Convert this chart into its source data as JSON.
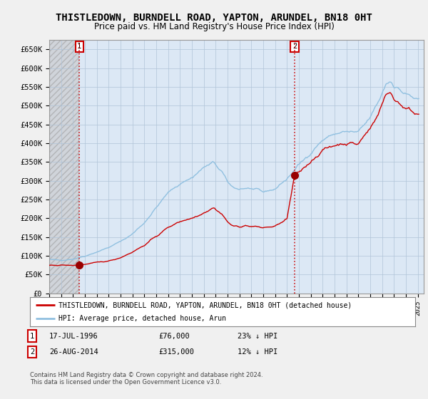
{
  "title": "THISTLEDOWN, BURNDELL ROAD, YAPTON, ARUNDEL, BN18 0HT",
  "subtitle": "Price paid vs. HM Land Registry's House Price Index (HPI)",
  "title_fontsize": 10,
  "subtitle_fontsize": 8.5,
  "ylabel_ticks": [
    "£0",
    "£50K",
    "£100K",
    "£150K",
    "£200K",
    "£250K",
    "£300K",
    "£350K",
    "£400K",
    "£450K",
    "£500K",
    "£550K",
    "£600K",
    "£650K"
  ],
  "ytick_values": [
    0,
    50000,
    100000,
    150000,
    200000,
    250000,
    300000,
    350000,
    400000,
    450000,
    500000,
    550000,
    600000,
    650000
  ],
  "ylim": [
    0,
    675000
  ],
  "xlim_start": 1994.0,
  "xlim_end": 2025.5,
  "xtick_years": [
    1994,
    1995,
    1996,
    1997,
    1998,
    1999,
    2000,
    2001,
    2002,
    2003,
    2004,
    2005,
    2006,
    2007,
    2008,
    2009,
    2010,
    2011,
    2012,
    2013,
    2014,
    2015,
    2016,
    2017,
    2018,
    2019,
    2020,
    2021,
    2022,
    2023,
    2024,
    2025
  ],
  "sale1_x": 1996.54,
  "sale1_y": 76000,
  "sale2_x": 2014.65,
  "sale2_y": 315000,
  "sale1_date": "17-JUL-1996",
  "sale1_price": "£76,000",
  "sale1_hpi": "23% ↓ HPI",
  "sale2_date": "26-AUG-2014",
  "sale2_price": "£315,000",
  "sale2_hpi": "12% ↓ HPI",
  "line_color_red": "#cc0000",
  "line_color_blue": "#90c0e0",
  "dashed_color": "#cc0000",
  "legend_label_red": "THISTLEDOWN, BURNDELL ROAD, YAPTON, ARUNDEL, BN18 0HT (detached house)",
  "legend_label_blue": "HPI: Average price, detached house, Arun",
  "footnote": "Contains HM Land Registry data © Crown copyright and database right 2024.\nThis data is licensed under the Open Government Licence v3.0.",
  "bg_color": "#f0f0f0",
  "plot_bg_color": "#dce8f5"
}
